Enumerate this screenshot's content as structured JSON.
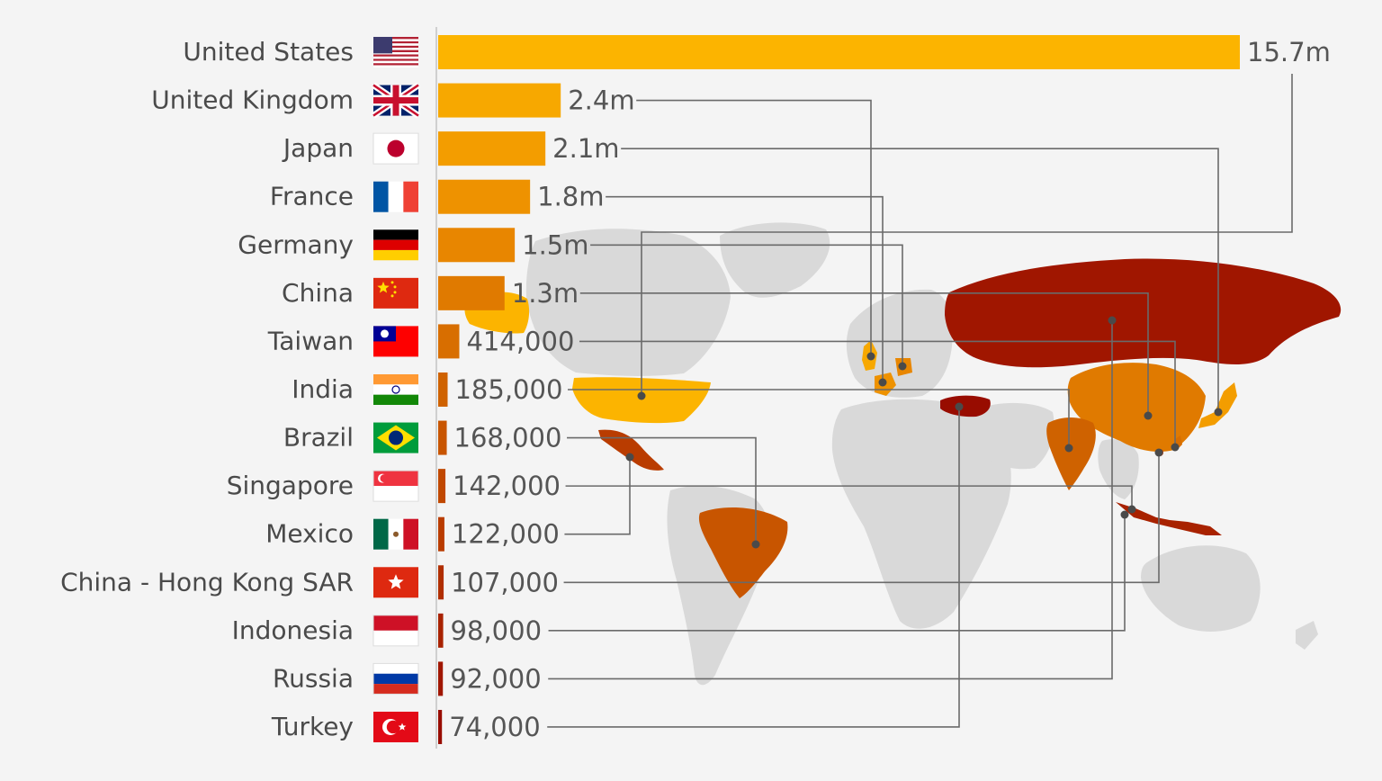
{
  "chart_data": {
    "type": "bar",
    "orientation": "horizontal",
    "categories": [
      "United States",
      "United Kingdom",
      "Japan",
      "France",
      "Germany",
      "China",
      "Taiwan",
      "India",
      "Brazil",
      "Singapore",
      "Mexico",
      "China - Hong Kong SAR",
      "Indonesia",
      "Russia",
      "Turkey"
    ],
    "values": [
      15700000,
      2400000,
      2100000,
      1800000,
      1500000,
      1300000,
      414000,
      185000,
      168000,
      142000,
      122000,
      107000,
      98000,
      92000,
      74000
    ],
    "value_labels": [
      "15.7m",
      "2.4m",
      "2.1m",
      "1.8m",
      "1.5m",
      "1.3m",
      "414,000",
      "185,000",
      "168,000",
      "142,000",
      "122,000",
      "107,000",
      "98,000",
      "92,000",
      "74,000"
    ],
    "bar_colors": [
      "#fcb400",
      "#f7a800",
      "#f39d00",
      "#ee9200",
      "#e88600",
      "#e07a00",
      "#d86e00",
      "#cf6200",
      "#c85500",
      "#c04800",
      "#b93c00",
      "#b02e00",
      "#a82200",
      "#a01600",
      "#980c00"
    ],
    "flags": [
      "us-flag-icon",
      "uk-flag-icon",
      "japan-flag-icon",
      "france-flag-icon",
      "germany-flag-icon",
      "china-flag-icon",
      "taiwan-flag-icon",
      "india-flag-icon",
      "brazil-flag-icon",
      "singapore-flag-icon",
      "mexico-flag-icon",
      "hong-kong-flag-icon",
      "indonesia-flag-icon",
      "russia-flag-icon",
      "turkey-flag-icon"
    ],
    "xlim": [
      0,
      15700000
    ],
    "grid": false,
    "legend": "none",
    "background_map": "world-map"
  }
}
